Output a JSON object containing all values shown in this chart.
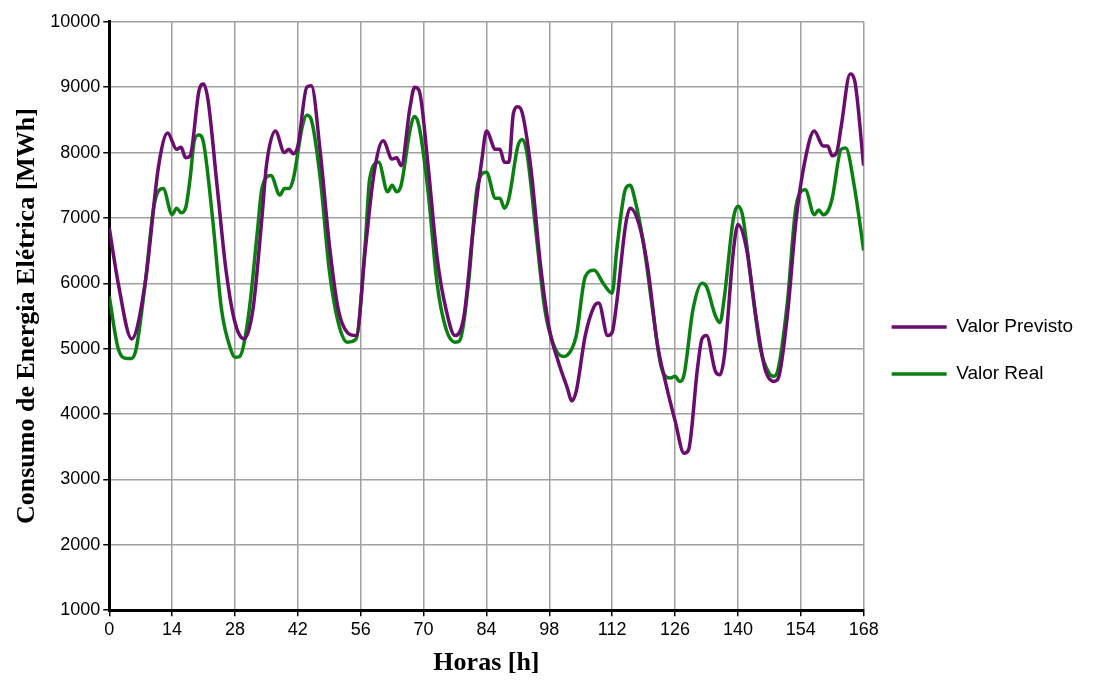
{
  "chart_data": {
    "type": "line",
    "xlabel": "Horas [h]",
    "ylabel": "Consumo de Energia Elétrica [MWh]",
    "xlim": [
      0,
      168
    ],
    "xticks": [
      0,
      14,
      28,
      42,
      56,
      70,
      84,
      98,
      112,
      126,
      140,
      154,
      168
    ],
    "ylim": [
      1000,
      10000
    ],
    "yticks": [
      1000,
      2000,
      3000,
      4000,
      5000,
      6000,
      7000,
      8000,
      9000,
      10000
    ],
    "grid": true,
    "legend": "right",
    "marker": "none",
    "line_style": "solid",
    "series": [
      {
        "name": "Valor Previsto",
        "color": "#6a0d6e",
        "x": [
          0,
          2,
          5,
          8,
          11,
          13,
          15,
          16,
          17,
          18,
          20,
          21,
          22,
          24,
          26,
          28,
          30,
          32,
          34,
          35,
          37,
          39,
          40,
          41,
          42,
          44,
          45,
          47,
          49,
          51,
          53,
          55,
          57,
          59,
          61,
          63,
          64,
          65,
          67,
          68,
          69,
          71,
          73,
          75,
          77,
          79,
          81,
          83,
          84,
          86,
          87,
          88,
          89,
          90,
          91,
          92,
          94,
          96,
          98,
          100,
          102,
          103,
          104,
          106,
          108,
          109,
          111,
          112,
          113,
          115,
          116,
          118,
          120,
          122,
          124,
          126,
          128,
          129,
          131,
          132,
          133,
          135,
          136,
          137,
          139,
          140,
          142,
          144,
          146,
          148,
          149,
          151,
          153,
          155,
          157,
          159,
          160,
          161,
          162,
          163,
          165,
          166,
          168
        ],
        "values": [
          6850,
          6000,
          5150,
          6000,
          7800,
          8300,
          8050,
          8080,
          7920,
          7950,
          8950,
          9050,
          8800,
          7500,
          6200,
          5400,
          5150,
          5600,
          7000,
          7800,
          8330,
          8000,
          8050,
          7980,
          8100,
          9000,
          9020,
          8000,
          6600,
          5600,
          5250,
          5200,
          6500,
          7700,
          8180,
          7900,
          7920,
          7800,
          8700,
          9000,
          8950,
          7800,
          6400,
          5600,
          5200,
          5500,
          6800,
          7900,
          8330,
          8050,
          8050,
          7850,
          7850,
          8600,
          8700,
          8600,
          7700,
          6300,
          5300,
          4800,
          4400,
          4200,
          4350,
          5200,
          5650,
          5700,
          5200,
          5250,
          5700,
          6900,
          7150,
          6900,
          6200,
          5100,
          4450,
          3900,
          3400,
          3450,
          4700,
          5150,
          5200,
          4650,
          4600,
          4900,
          6500,
          6900,
          6500,
          5500,
          4700,
          4500,
          4550,
          5500,
          7000,
          7900,
          8330,
          8100,
          8100,
          7950,
          8000,
          8400,
          9200,
          9100,
          7800
        ]
      },
      {
        "name": "Valor Real",
        "color": "#0a8010",
        "x": [
          0,
          2,
          4,
          5,
          6,
          8,
          10,
          12,
          14,
          15,
          16,
          17,
          18,
          19,
          20,
          21,
          23,
          25,
          27,
          28,
          29,
          31,
          33,
          34,
          36,
          38,
          39,
          40,
          41,
          43,
          44,
          45,
          47,
          49,
          51,
          53,
          55,
          57,
          58,
          60,
          62,
          63,
          64,
          65,
          67,
          68,
          69,
          71,
          73,
          75,
          77,
          78,
          80,
          82,
          84,
          86,
          87,
          88,
          89,
          91,
          92,
          93,
          95,
          97,
          99,
          101,
          102,
          104,
          106,
          108,
          110,
          112,
          113,
          115,
          116,
          117,
          119,
          121,
          123,
          125,
          126,
          127,
          128,
          130,
          132,
          133,
          135,
          136,
          137,
          139,
          140,
          141,
          143,
          145,
          147,
          148,
          149,
          151,
          153,
          155,
          157,
          158,
          159,
          160,
          161,
          163,
          164,
          166,
          168
        ],
        "values": [
          5800,
          5000,
          4850,
          4850,
          5000,
          6000,
          7200,
          7450,
          7050,
          7150,
          7080,
          7150,
          7600,
          8200,
          8270,
          8150,
          7000,
          5600,
          5000,
          4870,
          4880,
          5500,
          6800,
          7450,
          7650,
          7350,
          7450,
          7450,
          7600,
          8400,
          8570,
          8500,
          7600,
          6200,
          5400,
          5100,
          5150,
          6600,
          7600,
          7850,
          7400,
          7500,
          7400,
          7500,
          8350,
          8550,
          8400,
          7400,
          6000,
          5300,
          5100,
          5120,
          6000,
          7500,
          7700,
          7300,
          7300,
          7150,
          7300,
          8100,
          8200,
          8000,
          6800,
          5600,
          5050,
          4880,
          4900,
          5200,
          6100,
          6200,
          6000,
          5850,
          6500,
          7450,
          7500,
          7300,
          6600,
          5600,
          4700,
          4550,
          4580,
          4500,
          4600,
          5600,
          6000,
          5950,
          5500,
          5400,
          5800,
          7000,
          7180,
          7050,
          6000,
          5000,
          4620,
          4580,
          4700,
          5700,
          7200,
          7430,
          7050,
          7120,
          7050,
          7100,
          7300,
          8050,
          8070,
          7450,
          6500
        ]
      }
    ]
  }
}
